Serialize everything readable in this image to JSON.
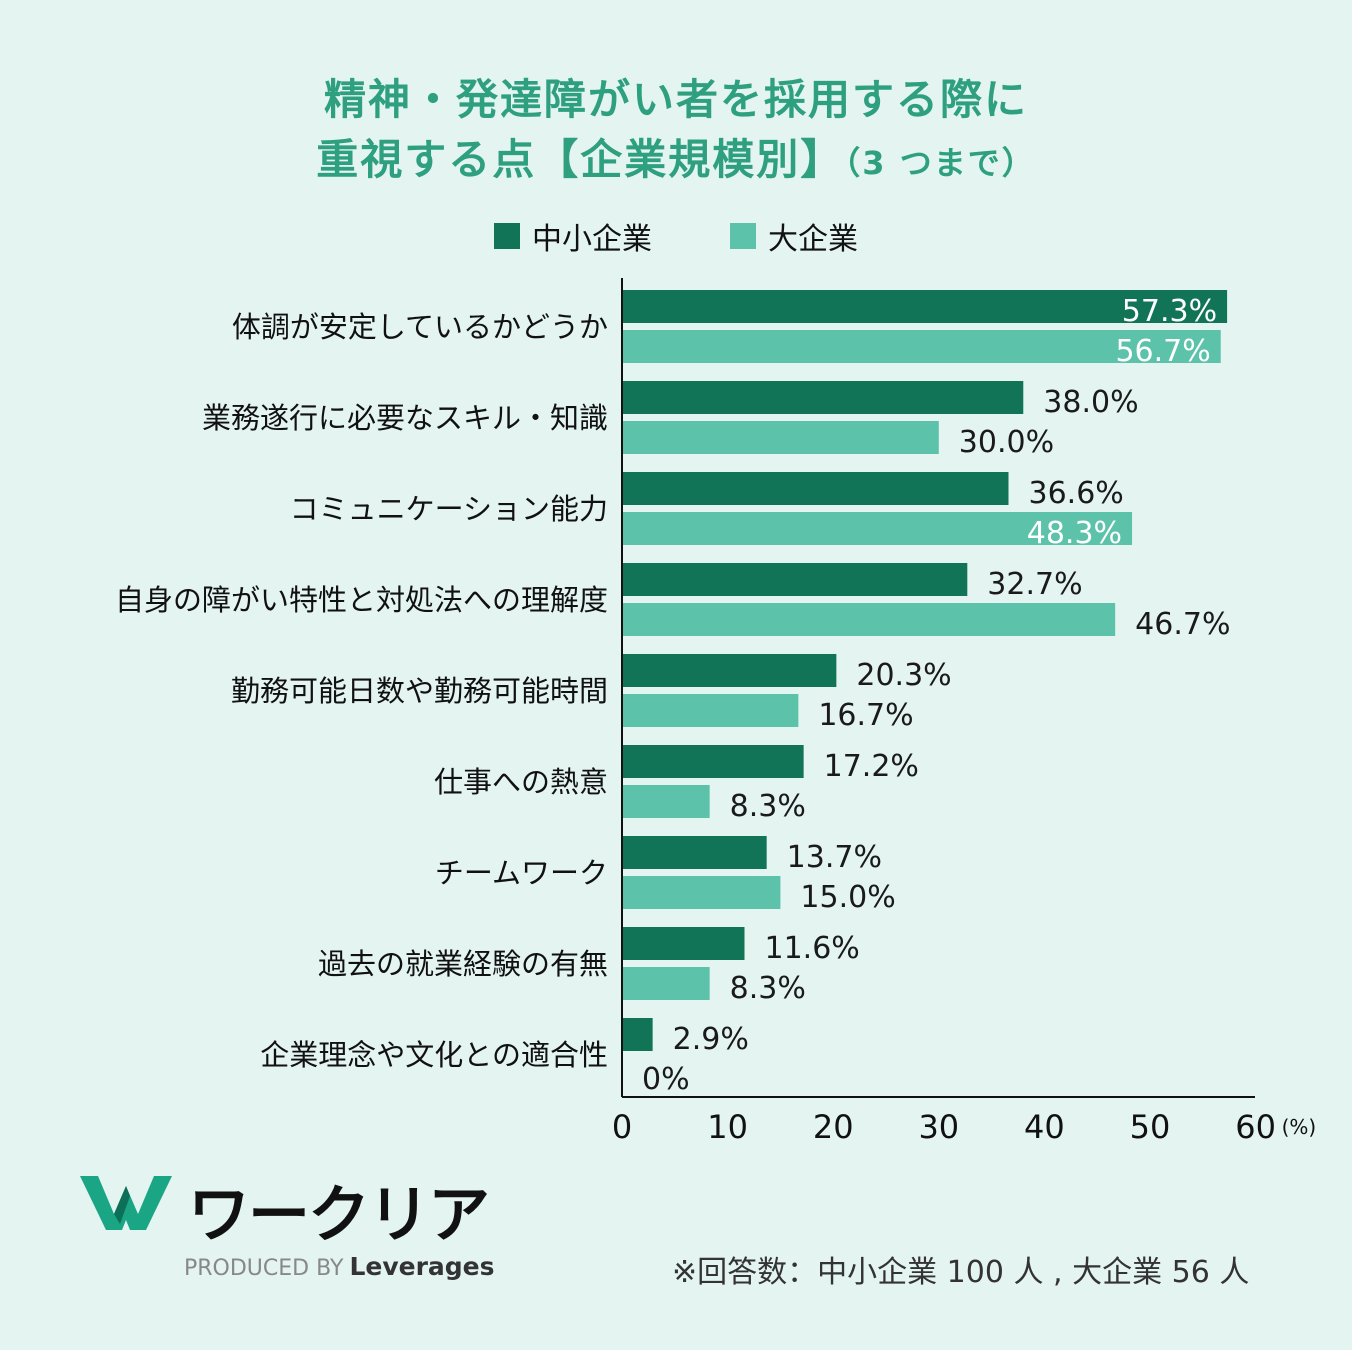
{
  "title": {
    "line1": "精神・発達障がい者を採用する際に",
    "line2": "重視する点【企業規模別】",
    "note": "（3 つまで）"
  },
  "legend": [
    {
      "label": "中小企業",
      "color": "#127457"
    },
    {
      "label": "大企業",
      "color": "#5cc3aa"
    }
  ],
  "chart_data": {
    "type": "bar",
    "orientation": "horizontal",
    "categories": [
      "体調が安定しているかどうか",
      "業務遂行に必要なスキル・知識",
      "コミュニケーション能力",
      "自身の障がい特性と対処法への理解度",
      "勤務可能日数や勤務可能時間",
      "仕事への熱意",
      "チームワーク",
      "過去の就業経験の有無",
      "企業理念や文化との適合性"
    ],
    "series": [
      {
        "name": "中小企業",
        "color": "#127457",
        "values": [
          57.3,
          38.0,
          36.6,
          32.7,
          20.3,
          17.2,
          13.7,
          11.6,
          2.9
        ]
      },
      {
        "name": "大企業",
        "color": "#5cc3aa",
        "values": [
          56.7,
          30.0,
          48.3,
          46.7,
          16.7,
          8.3,
          15.0,
          8.3,
          0
        ]
      }
    ],
    "data_labels": [
      [
        "57.3%",
        "38.0%",
        "36.6%",
        "32.7%",
        "20.3%",
        "17.2%",
        "13.7%",
        "11.6%",
        "2.9%"
      ],
      [
        "56.7%",
        "30.0%",
        "48.3%",
        "46.7%",
        "16.7%",
        "8.3%",
        "15.0%",
        "8.3%",
        "0%"
      ]
    ],
    "x_ticks": [
      "0",
      "10",
      "20",
      "30",
      "40",
      "50",
      "60"
    ],
    "x_unit": "(%)",
    "xlim": [
      0,
      60
    ]
  },
  "logo": {
    "wordmark": "ワークリア",
    "produced_by": "PRODUCED BY",
    "company": "Leverages"
  },
  "footnote": "※回答数：中小企業 100 人 , 大企業 56 人"
}
